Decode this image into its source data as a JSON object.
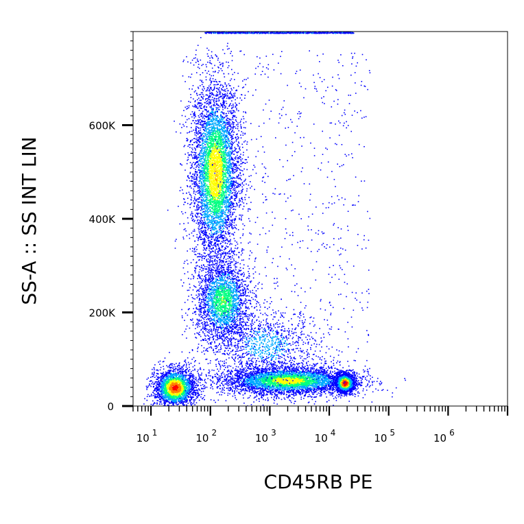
{
  "chart_data": {
    "type": "scatter",
    "style": "density-dot-plot",
    "xlabel": "CD45RB PE",
    "ylabel": "SS-A :: SS INT LIN",
    "x_scale": "log",
    "xlim": [
      5,
      10000000
    ],
    "ylim": [
      0,
      800000
    ],
    "x_ticks": [
      {
        "value": 10,
        "base": "10",
        "exp": "1"
      },
      {
        "value": 100,
        "base": "10",
        "exp": "2"
      },
      {
        "value": 1000,
        "base": "10",
        "exp": "3"
      },
      {
        "value": 10000,
        "base": "10",
        "exp": "4"
      },
      {
        "value": 100000,
        "base": "10",
        "exp": "5"
      },
      {
        "value": 1000000,
        "base": "10",
        "exp": "6"
      }
    ],
    "y_ticks": [
      {
        "value": 0,
        "label": "0"
      },
      {
        "value": 200000,
        "label": "200K"
      },
      {
        "value": 400000,
        "label": "400K"
      },
      {
        "value": 600000,
        "label": "600K"
      }
    ],
    "grid": false,
    "legend": "none",
    "density_colors": [
      "#0000ff",
      "#00aaff",
      "#00ff80",
      "#ffff00",
      "#ff8000",
      "#ff0000"
    ],
    "populations": [
      {
        "x_center": 120,
        "y_center": 500000,
        "x_spread_log": 0.2,
        "y_spread": 95000,
        "count": 5200,
        "peak_density": 0.62
      },
      {
        "x_center": 160,
        "y_center": 225000,
        "x_spread_log": 0.22,
        "y_spread": 45000,
        "count": 2400,
        "peak_density": 0.45
      },
      {
        "x_center": 25,
        "y_center": 40000,
        "x_spread_log": 0.17,
        "y_spread": 20000,
        "count": 2600,
        "peak_density": 0.85
      },
      {
        "x_center": 2000,
        "y_center": 55000,
        "x_spread_log": 0.55,
        "y_spread": 15000,
        "count": 4200,
        "peak_density": 0.55
      },
      {
        "x_center": 18000,
        "y_center": 50000,
        "x_spread_log": 0.08,
        "y_spread": 10000,
        "count": 1700,
        "peak_density": 1.0
      },
      {
        "x_center": 800,
        "y_center": 130000,
        "x_spread_log": 0.45,
        "y_spread": 40000,
        "count": 1100,
        "peak_density": 0.2
      }
    ]
  }
}
